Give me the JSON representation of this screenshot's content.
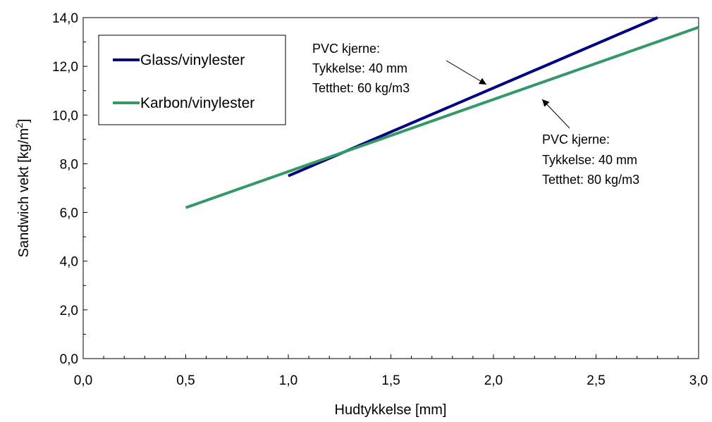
{
  "chart_data": {
    "type": "line",
    "xlabel": "Hudtykkelse [mm]",
    "ylabel": "Sandwich vekt [kg/m",
    "ylabel_sup": "2",
    "ylabel_end": "]",
    "xlim": [
      0,
      3
    ],
    "ylim": [
      0,
      14
    ],
    "xticks": [
      "0,0",
      "0,5",
      "1,0",
      "1,5",
      "2,0",
      "2,5",
      "3,0"
    ],
    "yticks": [
      "0,0",
      "2,0",
      "4,0",
      "6,0",
      "8,0",
      "10,0",
      "12,0",
      "14,0"
    ],
    "grid": false,
    "legend_position": "top-left",
    "series": [
      {
        "name": "Glass/vinylester",
        "color": "#000080",
        "x": [
          1.0,
          2.8
        ],
        "y": [
          7.5,
          14.0
        ]
      },
      {
        "name": "Karbon/vinylester",
        "color": "#339966",
        "x": [
          0.5,
          3.0
        ],
        "y": [
          6.2,
          13.6
        ]
      }
    ],
    "annotations": [
      {
        "lines": [
          "PVC kjerne:",
          "Tykkelse: 40 mm",
          "Tetthet: 60 kg/m3"
        ],
        "points_to": "Glass/vinylester"
      },
      {
        "lines": [
          "PVC kjerne:",
          "Tykkelse: 40 mm",
          "Tetthet: 80 kg/m3"
        ],
        "points_to": "Karbon/vinylester"
      }
    ]
  }
}
